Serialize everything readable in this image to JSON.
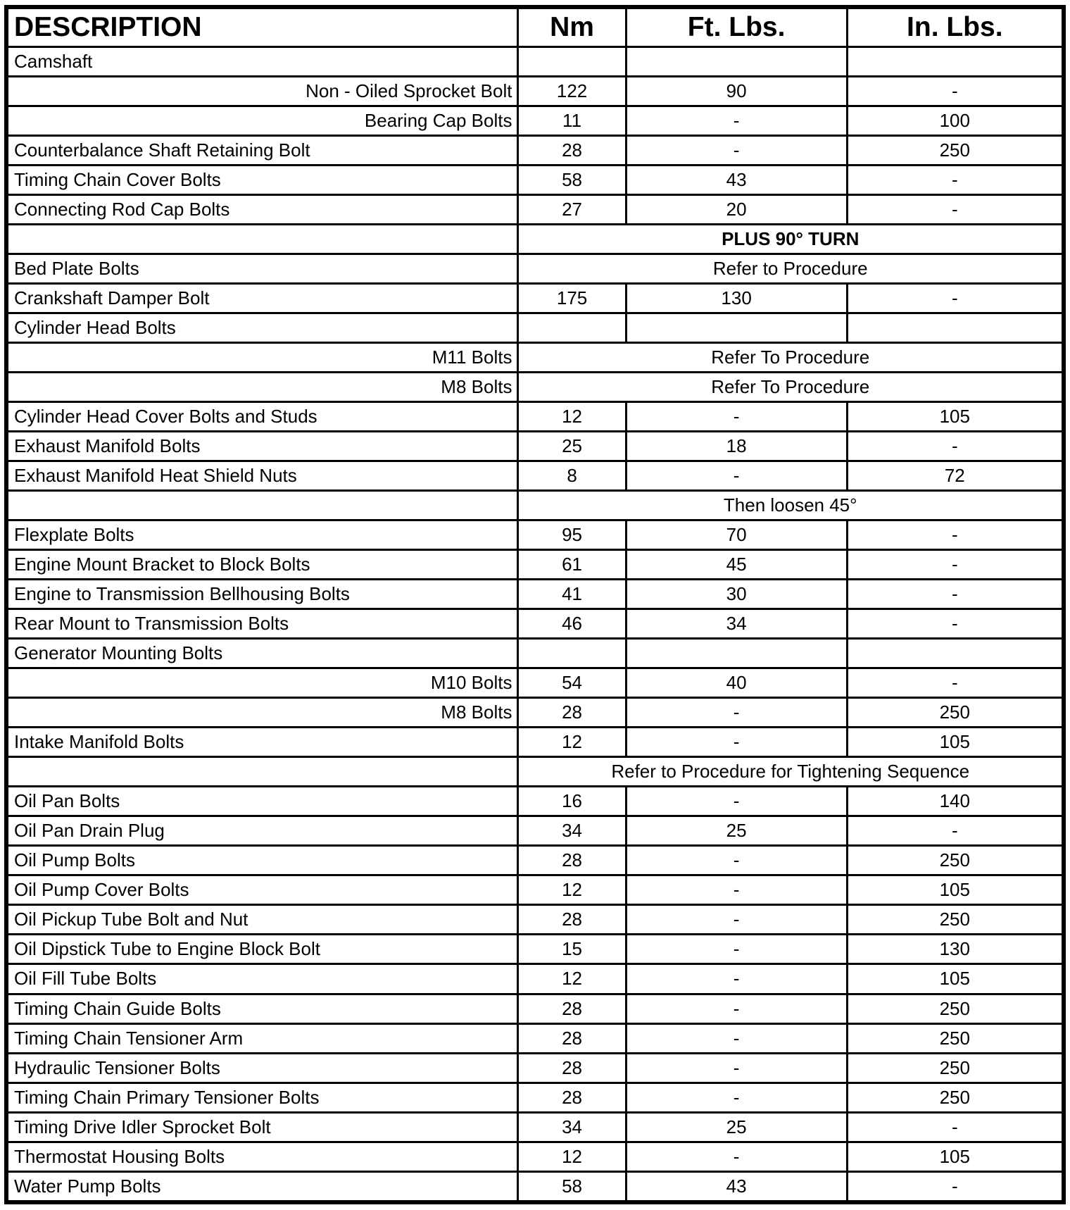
{
  "table": {
    "columns": [
      "DESCRIPTION",
      "Nm",
      "Ft. Lbs.",
      "In. Lbs."
    ],
    "rows": [
      {
        "desc": "Camshaft",
        "align": "left",
        "cells": [
          "",
          "",
          ""
        ]
      },
      {
        "desc": "Non - Oiled Sprocket Bolt",
        "align": "right",
        "cells": [
          "122",
          "90",
          "-"
        ]
      },
      {
        "desc": "Bearing Cap Bolts",
        "align": "right",
        "cells": [
          "11",
          "-",
          "100"
        ]
      },
      {
        "desc": "Counterbalance Shaft Retaining Bolt",
        "align": "left",
        "cells": [
          "28",
          "-",
          "250"
        ]
      },
      {
        "desc": "Timing Chain Cover Bolts",
        "align": "left",
        "cells": [
          "58",
          "43",
          "-"
        ]
      },
      {
        "desc": "Connecting Rod Cap Bolts",
        "align": "left",
        "cells": [
          "27",
          "20",
          "-"
        ]
      },
      {
        "desc": "",
        "align": "left",
        "span": "PLUS 90° TURN",
        "bold": true
      },
      {
        "desc": "Bed Plate Bolts",
        "align": "left",
        "span": "Refer to Procedure"
      },
      {
        "desc": "Crankshaft Damper Bolt",
        "align": "left",
        "cells": [
          "175",
          "130",
          "-"
        ]
      },
      {
        "desc": "Cylinder Head Bolts",
        "align": "left",
        "cells": [
          "",
          "",
          ""
        ]
      },
      {
        "desc": "M11 Bolts",
        "align": "right",
        "span": "Refer To Procedure"
      },
      {
        "desc": "M8 Bolts",
        "align": "right",
        "span": "Refer To Procedure"
      },
      {
        "desc": "Cylinder Head Cover Bolts and Studs",
        "align": "left",
        "cells": [
          "12",
          "-",
          "105"
        ]
      },
      {
        "desc": "Exhaust Manifold Bolts",
        "align": "left",
        "cells": [
          "25",
          "18",
          "-"
        ]
      },
      {
        "desc": "Exhaust Manifold Heat Shield Nuts",
        "align": "left",
        "cells": [
          "8",
          "-",
          "72"
        ]
      },
      {
        "desc": "",
        "align": "left",
        "span": "Then loosen 45°"
      },
      {
        "desc": "Flexplate Bolts",
        "align": "left",
        "cells": [
          "95",
          "70",
          "-"
        ]
      },
      {
        "desc": "Engine Mount Bracket to Block Bolts",
        "align": "left",
        "cells": [
          "61",
          "45",
          "-"
        ]
      },
      {
        "desc": "Engine to Transmission Bellhousing Bolts",
        "align": "left",
        "cells": [
          "41",
          "30",
          "-"
        ]
      },
      {
        "desc": "Rear Mount to Transmission Bolts",
        "align": "left",
        "cells": [
          "46",
          "34",
          "-"
        ]
      },
      {
        "desc": "Generator Mounting Bolts",
        "align": "left",
        "cells": [
          "",
          "",
          ""
        ]
      },
      {
        "desc": "M10 Bolts",
        "align": "right",
        "cells": [
          "54",
          "40",
          "-"
        ]
      },
      {
        "desc": "M8 Bolts",
        "align": "right",
        "cells": [
          "28",
          "-",
          "250"
        ]
      },
      {
        "desc": "Intake Manifold Bolts",
        "align": "left",
        "cells": [
          "12",
          "-",
          "105"
        ]
      },
      {
        "desc": "",
        "align": "left",
        "span": "Refer to Procedure for Tightening Sequence"
      },
      {
        "desc": "Oil Pan Bolts",
        "align": "left",
        "cells": [
          "16",
          "-",
          "140"
        ]
      },
      {
        "desc": "Oil Pan Drain Plug",
        "align": "left",
        "cells": [
          "34",
          "25",
          "-"
        ]
      },
      {
        "desc": "Oil Pump Bolts",
        "align": "left",
        "cells": [
          "28",
          "-",
          "250"
        ]
      },
      {
        "desc": "Oil Pump Cover Bolts",
        "align": "left",
        "cells": [
          "12",
          "-",
          "105"
        ]
      },
      {
        "desc": "Oil Pickup Tube Bolt and Nut",
        "align": "left",
        "cells": [
          "28",
          "-",
          "250"
        ]
      },
      {
        "desc": "Oil Dipstick Tube to Engine Block Bolt",
        "align": "left",
        "cells": [
          "15",
          "-",
          "130"
        ]
      },
      {
        "desc": "Oil Fill Tube Bolts",
        "align": "left",
        "cells": [
          "12",
          "-",
          "105"
        ]
      },
      {
        "desc": "Timing Chain Guide Bolts",
        "align": "left",
        "cells": [
          "28",
          "-",
          "250"
        ]
      },
      {
        "desc": "Timing Chain Tensioner Arm",
        "align": "left",
        "cells": [
          "28",
          "-",
          "250"
        ]
      },
      {
        "desc": "Hydraulic Tensioner Bolts",
        "align": "left",
        "cells": [
          "28",
          "-",
          "250"
        ]
      },
      {
        "desc": "Timing Chain Primary Tensioner Bolts",
        "align": "left",
        "cells": [
          "28",
          "-",
          "250"
        ]
      },
      {
        "desc": "Timing Drive Idler Sprocket Bolt",
        "align": "left",
        "cells": [
          "34",
          "25",
          "-"
        ]
      },
      {
        "desc": "Thermostat Housing Bolts",
        "align": "left",
        "cells": [
          "12",
          "-",
          "105"
        ]
      },
      {
        "desc": "Water Pump Bolts",
        "align": "left",
        "cells": [
          "58",
          "43",
          "-"
        ]
      }
    ]
  }
}
